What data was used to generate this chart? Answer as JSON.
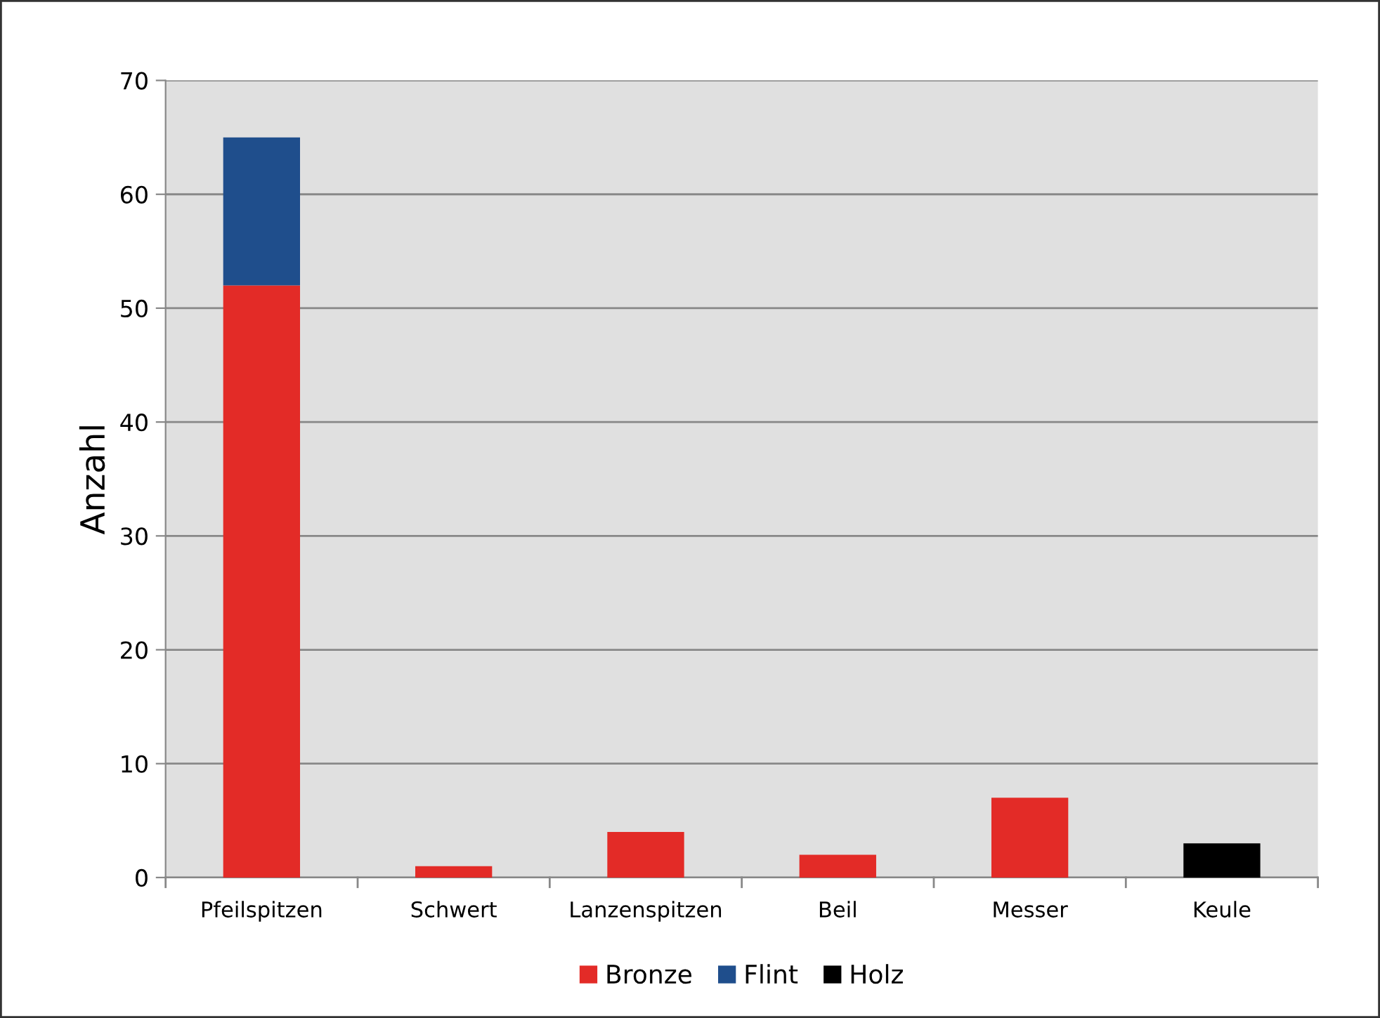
{
  "chart_data": {
    "type": "bar",
    "stacked": true,
    "ylabel": "Anzahl",
    "categories": [
      "Pfeilspitzen",
      "Schwert",
      "Lanzenspitzen",
      "Beil",
      "Messer",
      "Keule"
    ],
    "series": [
      {
        "name": "Bronze",
        "color": "#e32b27",
        "values": [
          52,
          1,
          4,
          2,
          7,
          null
        ]
      },
      {
        "name": "Flint",
        "color": "#1f4e8c",
        "values": [
          13,
          null,
          null,
          null,
          null,
          null
        ]
      },
      {
        "name": "Holz",
        "color": "#000000",
        "values": [
          null,
          null,
          null,
          null,
          null,
          3
        ]
      }
    ],
    "ylim": [
      0,
      70
    ],
    "yticks": [
      0,
      10,
      20,
      30,
      40,
      50,
      60,
      70
    ],
    "grid": "y",
    "legend": "bottom"
  }
}
